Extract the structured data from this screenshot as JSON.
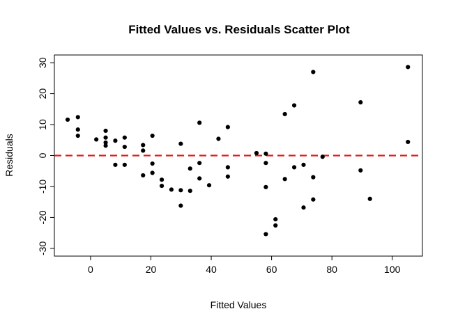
{
  "chart_data": {
    "type": "scatter",
    "title": "Fitted Values vs. Residuals Scatter Plot",
    "xlabel": "Fitted Values",
    "ylabel": "Residuals",
    "xlim": [
      -12,
      110
    ],
    "ylim": [
      -32.5,
      32.5
    ],
    "xticks": [
      0,
      20,
      40,
      60,
      80,
      100
    ],
    "yticks": [
      -30,
      -20,
      -10,
      0,
      10,
      20,
      30
    ],
    "reference_line": {
      "y": 0,
      "color": "#e31a1c",
      "style": "dashed"
    },
    "point_color": "#000000",
    "grid": false,
    "points": [
      [
        -7.6,
        11.6
      ],
      [
        -4.2,
        12.4
      ],
      [
        -4.2,
        8.4
      ],
      [
        -4.2,
        6.4
      ],
      [
        1.9,
        5.2
      ],
      [
        5.0,
        8.0
      ],
      [
        5.0,
        5.8
      ],
      [
        5.0,
        4.2
      ],
      [
        5.0,
        3.2
      ],
      [
        8.2,
        4.8
      ],
      [
        8.2,
        -3.0
      ],
      [
        11.3,
        5.8
      ],
      [
        11.3,
        2.8
      ],
      [
        11.3,
        -3.0
      ],
      [
        17.4,
        3.4
      ],
      [
        17.4,
        1.6
      ],
      [
        17.4,
        -6.4
      ],
      [
        20.5,
        6.4
      ],
      [
        20.5,
        -2.6
      ],
      [
        20.5,
        -5.6
      ],
      [
        23.6,
        -7.8
      ],
      [
        23.6,
        -9.8
      ],
      [
        26.8,
        -11.0
      ],
      [
        29.9,
        3.8
      ],
      [
        29.9,
        -11.2
      ],
      [
        29.9,
        -16.2
      ],
      [
        33.0,
        -4.2
      ],
      [
        33.0,
        -11.4
      ],
      [
        36.1,
        10.6
      ],
      [
        36.1,
        -2.4
      ],
      [
        36.1,
        -7.4
      ],
      [
        39.3,
        -9.6
      ],
      [
        42.4,
        5.4
      ],
      [
        45.5,
        9.2
      ],
      [
        45.5,
        -3.8
      ],
      [
        45.5,
        -6.8
      ],
      [
        55.0,
        0.8
      ],
      [
        58.1,
        0.6
      ],
      [
        58.1,
        -2.4
      ],
      [
        58.1,
        -10.2
      ],
      [
        58.1,
        -25.4
      ],
      [
        61.3,
        -20.6
      ],
      [
        61.3,
        -22.6
      ],
      [
        64.4,
        13.4
      ],
      [
        64.4,
        -7.6
      ],
      [
        67.5,
        16.2
      ],
      [
        67.5,
        -3.8
      ],
      [
        70.6,
        -3.0
      ],
      [
        70.6,
        -16.8
      ],
      [
        73.8,
        27.0
      ],
      [
        73.8,
        -7.0
      ],
      [
        73.8,
        -14.2
      ],
      [
        76.9,
        -0.4
      ],
      [
        89.5,
        17.2
      ],
      [
        89.5,
        -4.8
      ],
      [
        92.6,
        -14.0
      ],
      [
        105.2,
        28.6
      ],
      [
        105.2,
        4.4
      ]
    ]
  }
}
